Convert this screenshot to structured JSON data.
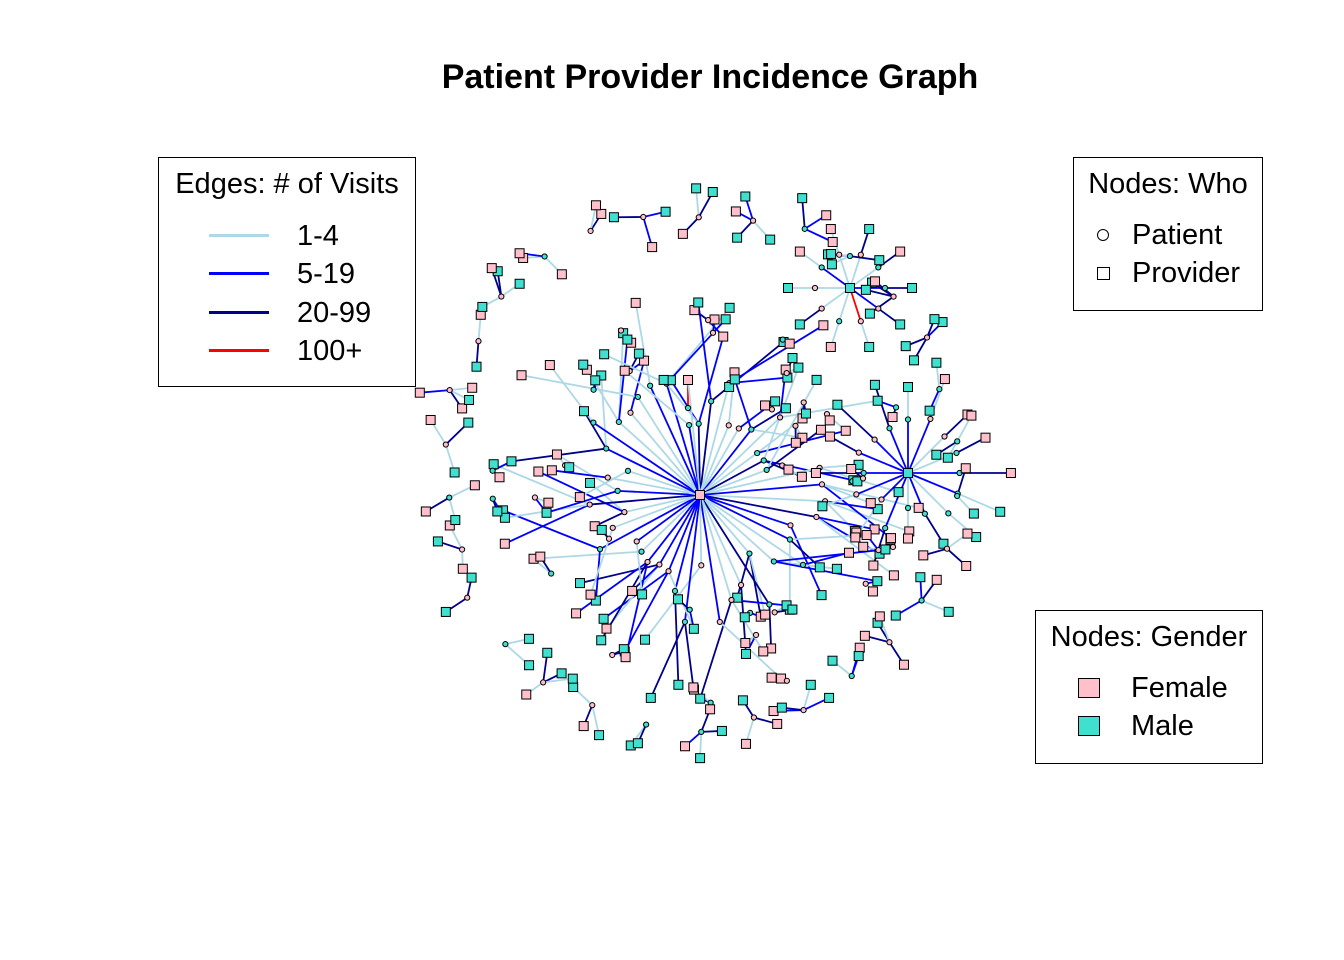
{
  "title": "Patient Provider Incidence Graph",
  "legend_edges": {
    "title": "Edges: # of Visits",
    "items": [
      {
        "label": "1-4",
        "color": "#add8e6"
      },
      {
        "label": "5-19",
        "color": "#0000ff"
      },
      {
        "label": "20-99",
        "color": "#00008b"
      },
      {
        "label": "100+",
        "color": "#ff0000"
      }
    ]
  },
  "legend_who": {
    "title": "Nodes: Who",
    "items": [
      {
        "label": "Patient",
        "shape": "circle"
      },
      {
        "label": "Provider",
        "shape": "square"
      }
    ]
  },
  "legend_gender": {
    "title": "Nodes: Gender",
    "items": [
      {
        "label": "Female",
        "color": "#ffc0cb"
      },
      {
        "label": "Male",
        "color": "#40e0d0"
      }
    ]
  }
}
